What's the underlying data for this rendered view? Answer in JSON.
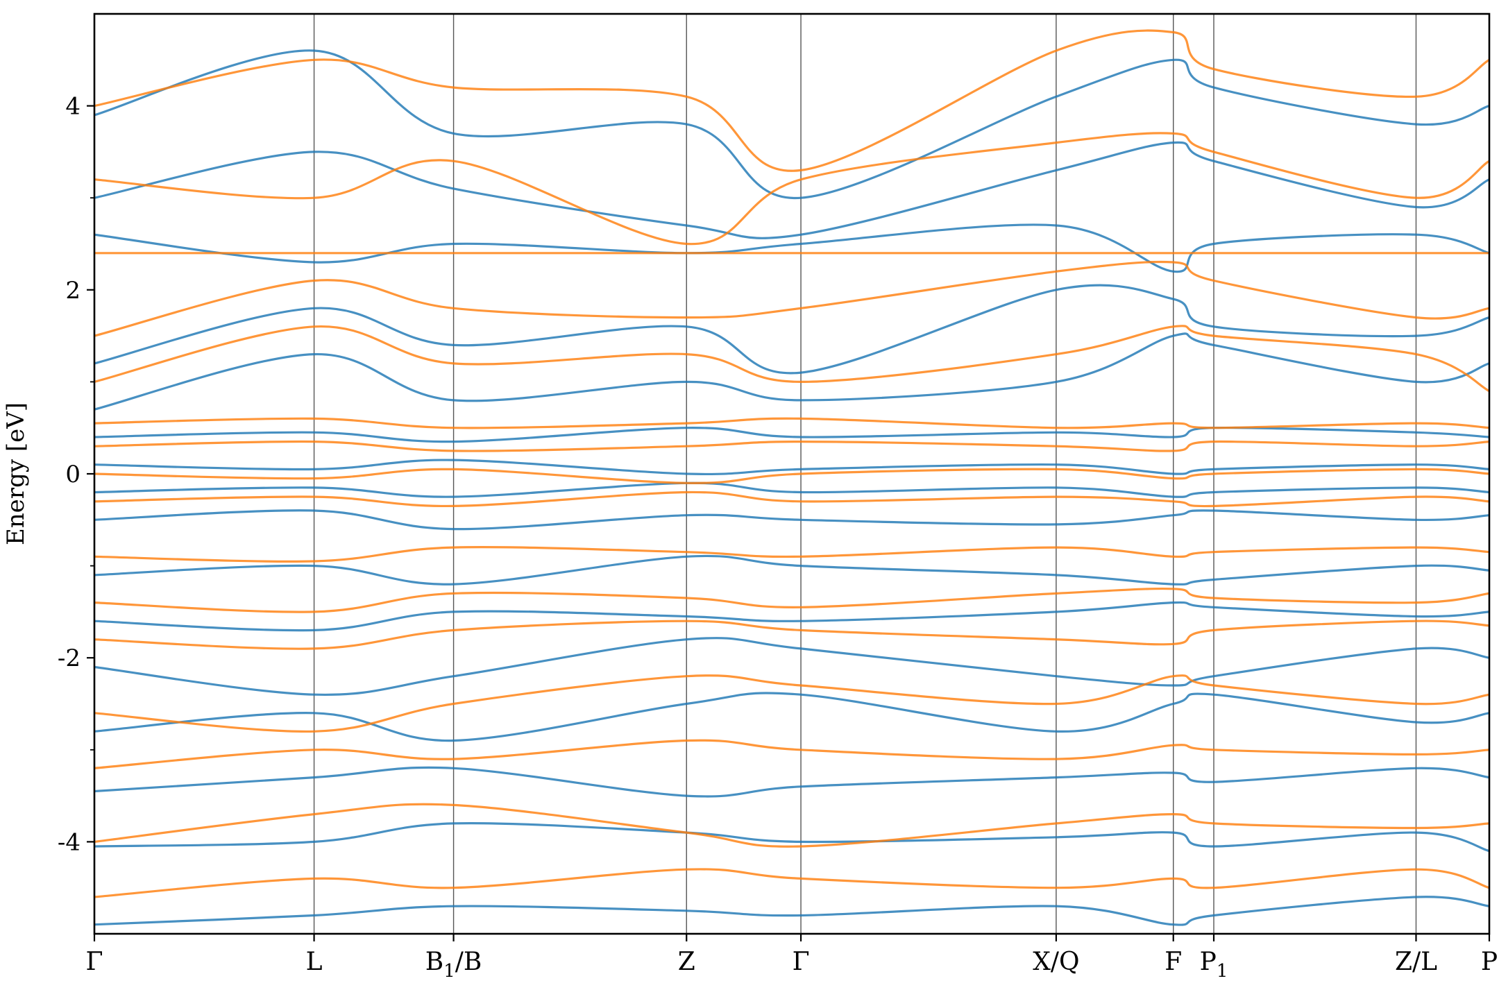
{
  "chart_data": {
    "type": "line",
    "title": "",
    "xlabel": "",
    "ylabel": "Energy [eV]",
    "ylim": [
      -5,
      5
    ],
    "yticks": [
      {
        "value": 4,
        "label": "4"
      },
      {
        "value": 2,
        "label": "2"
      },
      {
        "value": 0,
        "label": "0"
      },
      {
        "value": -2,
        "label": "-2"
      },
      {
        "value": -4,
        "label": "-4"
      }
    ],
    "yminor": [
      3,
      1,
      -1,
      -3
    ],
    "kpoints": [
      {
        "pos": 0.0,
        "label": "Γ"
      },
      {
        "pos": 1.575,
        "label": "L"
      },
      {
        "pos": 2.575,
        "label": "B1/B",
        "base": "B",
        "sub": "1",
        "tail": "/B"
      },
      {
        "pos": 4.245,
        "label": "Z"
      },
      {
        "pos": 5.065,
        "label": "Γ"
      },
      {
        "pos": 6.895,
        "label": "X/Q"
      },
      {
        "pos": 7.735,
        "label": "F"
      },
      {
        "pos": 8.025,
        "label": "P1",
        "base": "P",
        "sub": "1",
        "tail": ""
      },
      {
        "pos": 9.475,
        "label": "Z/L"
      },
      {
        "pos": 10.0,
        "label": "P"
      }
    ],
    "grid": false,
    "legend": "none",
    "colors": {
      "spin_up": "#1f77b4",
      "spin_down": "#ff7f0e"
    },
    "series": [
      {
        "color": "#1f77b4",
        "bands": [
          {
            "x": [
              0,
              1.575,
              2.575,
              4.245,
              5.065,
              6.895,
              7.735,
              8.025,
              9.475,
              10
            ],
            "y": [
              -4.9,
              -4.8,
              -4.7,
              -4.75,
              -4.8,
              -4.7,
              -4.9,
              -4.8,
              -4.6,
              -4.7
            ]
          },
          {
            "x": [
              0,
              1.575,
              2.575,
              4.245,
              5.065,
              6.895,
              7.735,
              8.025,
              9.475,
              10
            ],
            "y": [
              -4.05,
              -4.0,
              -3.8,
              -3.9,
              -4.0,
              -3.95,
              -3.9,
              -4.05,
              -3.9,
              -4.1
            ]
          },
          {
            "x": [
              0,
              1.575,
              2.575,
              4.245,
              5.065,
              6.895,
              7.735,
              8.025,
              9.475,
              10
            ],
            "y": [
              -3.45,
              -3.3,
              -3.2,
              -3.5,
              -3.4,
              -3.3,
              -3.25,
              -3.35,
              -3.2,
              -3.3
            ]
          },
          {
            "x": [
              0,
              1.575,
              2.575,
              4.245,
              5.065,
              6.895,
              7.735,
              8.025,
              9.475,
              10
            ],
            "y": [
              -2.8,
              -2.6,
              -2.9,
              -2.5,
              -2.4,
              -2.8,
              -2.5,
              -2.4,
              -2.7,
              -2.6
            ]
          },
          {
            "x": [
              0,
              1.575,
              2.575,
              4.245,
              5.065,
              6.895,
              7.735,
              8.025,
              9.475,
              10
            ],
            "y": [
              -2.1,
              -2.4,
              -2.2,
              -1.8,
              -1.9,
              -2.2,
              -2.3,
              -2.2,
              -1.9,
              -2.0
            ]
          },
          {
            "x": [
              0,
              1.575,
              2.575,
              4.245,
              5.065,
              6.895,
              7.735,
              8.025,
              9.475,
              10
            ],
            "y": [
              -1.6,
              -1.7,
              -1.5,
              -1.55,
              -1.6,
              -1.5,
              -1.4,
              -1.45,
              -1.55,
              -1.5
            ]
          },
          {
            "x": [
              0,
              1.575,
              2.575,
              4.245,
              5.065,
              6.895,
              7.735,
              8.025,
              9.475,
              10
            ],
            "y": [
              -1.1,
              -1.0,
              -1.2,
              -0.9,
              -1.0,
              -1.1,
              -1.2,
              -1.15,
              -1.0,
              -1.05
            ]
          },
          {
            "x": [
              0,
              1.575,
              2.575,
              4.245,
              5.065,
              6.895,
              7.735,
              8.025,
              9.475,
              10
            ],
            "y": [
              -0.5,
              -0.4,
              -0.6,
              -0.45,
              -0.5,
              -0.55,
              -0.45,
              -0.4,
              -0.5,
              -0.45
            ]
          },
          {
            "x": [
              0,
              1.575,
              2.575,
              4.245,
              5.065,
              6.895,
              7.735,
              8.025,
              9.475,
              10
            ],
            "y": [
              -0.2,
              -0.15,
              -0.25,
              -0.1,
              -0.2,
              -0.15,
              -0.25,
              -0.2,
              -0.15,
              -0.2
            ]
          },
          {
            "x": [
              0,
              1.575,
              2.575,
              4.245,
              5.065,
              6.895,
              7.735,
              8.025,
              9.475,
              10
            ],
            "y": [
              0.1,
              0.05,
              0.15,
              0.0,
              0.05,
              0.1,
              0.0,
              0.05,
              0.1,
              0.05
            ]
          },
          {
            "x": [
              0,
              1.575,
              2.575,
              4.245,
              5.065,
              6.895,
              7.735,
              8.025,
              9.475,
              10
            ],
            "y": [
              0.4,
              0.45,
              0.35,
              0.5,
              0.4,
              0.45,
              0.4,
              0.5,
              0.45,
              0.4
            ]
          },
          {
            "x": [
              0,
              1.575,
              2.575,
              4.245,
              5.065,
              6.895,
              7.735,
              8.025,
              9.475,
              10
            ],
            "y": [
              0.7,
              1.3,
              0.8,
              1.0,
              0.8,
              1.0,
              1.5,
              1.4,
              1.0,
              1.2
            ]
          },
          {
            "x": [
              0,
              1.575,
              2.575,
              4.245,
              5.065,
              6.895,
              7.735,
              8.025,
              9.475,
              10
            ],
            "y": [
              1.2,
              1.8,
              1.4,
              1.6,
              1.1,
              2.0,
              1.9,
              1.6,
              1.5,
              1.7
            ]
          },
          {
            "x": [
              0,
              1.575,
              2.575,
              4.245,
              5.065,
              6.895,
              7.735,
              8.025,
              9.475,
              10
            ],
            "y": [
              2.6,
              2.3,
              2.5,
              2.4,
              2.5,
              2.7,
              2.2,
              2.5,
              2.6,
              2.4
            ]
          },
          {
            "x": [
              0,
              1.575,
              2.575,
              4.245,
              5.065,
              6.895,
              7.735,
              8.025,
              9.475,
              10
            ],
            "y": [
              3.0,
              3.5,
              3.1,
              2.7,
              2.6,
              3.3,
              3.6,
              3.4,
              2.9,
              3.2
            ]
          },
          {
            "x": [
              0,
              1.575,
              2.575,
              4.245,
              5.065,
              6.895,
              7.735,
              8.025,
              9.475,
              10
            ],
            "y": [
              3.9,
              4.6,
              3.7,
              3.8,
              3.0,
              4.1,
              4.5,
              4.2,
              3.8,
              4.0
            ]
          }
        ]
      },
      {
        "color": "#ff7f0e",
        "bands": [
          {
            "x": [
              0,
              1.575,
              2.575,
              4.245,
              5.065,
              6.895,
              7.735,
              8.025,
              9.475,
              10
            ],
            "y": [
              -4.6,
              -4.4,
              -4.5,
              -4.3,
              -4.4,
              -4.5,
              -4.4,
              -4.5,
              -4.3,
              -4.5
            ]
          },
          {
            "x": [
              0,
              1.575,
              2.575,
              4.245,
              5.065,
              6.895,
              7.735,
              8.025,
              9.475,
              10
            ],
            "y": [
              -4.0,
              -3.7,
              -3.6,
              -3.9,
              -4.05,
              -3.8,
              -3.7,
              -3.8,
              -3.85,
              -3.8
            ]
          },
          {
            "x": [
              0,
              1.575,
              2.575,
              4.245,
              5.065,
              6.895,
              7.735,
              8.025,
              9.475,
              10
            ],
            "y": [
              -3.2,
              -3.0,
              -3.1,
              -2.9,
              -3.0,
              -3.1,
              -2.95,
              -3.0,
              -3.05,
              -3.0
            ]
          },
          {
            "x": [
              0,
              1.575,
              2.575,
              4.245,
              5.065,
              6.895,
              7.735,
              8.025,
              9.475,
              10
            ],
            "y": [
              -2.6,
              -2.8,
              -2.5,
              -2.2,
              -2.3,
              -2.5,
              -2.2,
              -2.3,
              -2.5,
              -2.4
            ]
          },
          {
            "x": [
              0,
              1.575,
              2.575,
              4.245,
              5.065,
              6.895,
              7.735,
              8.025,
              9.475,
              10
            ],
            "y": [
              -1.8,
              -1.9,
              -1.7,
              -1.6,
              -1.7,
              -1.8,
              -1.85,
              -1.7,
              -1.6,
              -1.65
            ]
          },
          {
            "x": [
              0,
              1.575,
              2.575,
              4.245,
              5.065,
              6.895,
              7.735,
              8.025,
              9.475,
              10
            ],
            "y": [
              -1.4,
              -1.5,
              -1.3,
              -1.35,
              -1.45,
              -1.3,
              -1.25,
              -1.35,
              -1.4,
              -1.3
            ]
          },
          {
            "x": [
              0,
              1.575,
              2.575,
              4.245,
              5.065,
              6.895,
              7.735,
              8.025,
              9.475,
              10
            ],
            "y": [
              -0.9,
              -0.95,
              -0.8,
              -0.85,
              -0.9,
              -0.8,
              -0.9,
              -0.85,
              -0.8,
              -0.85
            ]
          },
          {
            "x": [
              0,
              1.575,
              2.575,
              4.245,
              5.065,
              6.895,
              7.735,
              8.025,
              9.475,
              10
            ],
            "y": [
              -0.3,
              -0.25,
              -0.35,
              -0.2,
              -0.3,
              -0.25,
              -0.3,
              -0.35,
              -0.25,
              -0.3
            ]
          },
          {
            "x": [
              0,
              1.575,
              2.575,
              4.245,
              5.065,
              6.895,
              7.735,
              8.025,
              9.475,
              10
            ],
            "y": [
              0.0,
              -0.05,
              0.05,
              -0.1,
              0.0,
              0.05,
              -0.05,
              0.0,
              0.05,
              0.0
            ]
          },
          {
            "x": [
              0,
              1.575,
              2.575,
              4.245,
              5.065,
              6.895,
              7.735,
              8.025,
              9.475,
              10
            ],
            "y": [
              0.3,
              0.35,
              0.25,
              0.3,
              0.35,
              0.3,
              0.25,
              0.35,
              0.3,
              0.35
            ]
          },
          {
            "x": [
              0,
              1.575,
              2.575,
              4.245,
              5.065,
              6.895,
              7.735,
              8.025,
              9.475,
              10
            ],
            "y": [
              0.55,
              0.6,
              0.5,
              0.55,
              0.6,
              0.5,
              0.55,
              0.5,
              0.55,
              0.5
            ]
          },
          {
            "x": [
              0,
              1.575,
              2.575,
              4.245,
              5.065,
              6.895,
              7.735,
              8.025,
              9.475,
              10
            ],
            "y": [
              1.0,
              1.6,
              1.2,
              1.3,
              1.0,
              1.3,
              1.6,
              1.5,
              1.3,
              0.9
            ]
          },
          {
            "x": [
              0,
              1.575,
              2.575,
              4.245,
              5.065,
              6.895,
              7.735,
              8.025,
              9.475,
              10
            ],
            "y": [
              1.5,
              2.1,
              1.8,
              1.7,
              1.8,
              2.2,
              2.3,
              2.1,
              1.7,
              1.8
            ]
          },
          {
            "x": [
              0,
              1.575,
              2.575,
              4.245,
              5.065,
              6.895,
              7.735,
              8.025,
              9.475,
              10
            ],
            "y": [
              2.4,
              2.4,
              2.4,
              2.4,
              2.4,
              2.4,
              2.4,
              2.4,
              2.4,
              2.4
            ]
          },
          {
            "x": [
              0,
              1.575,
              2.575,
              4.245,
              5.065,
              6.895,
              7.735,
              8.025,
              9.475,
              10
            ],
            "y": [
              3.2,
              3.0,
              3.4,
              2.5,
              3.2,
              3.6,
              3.7,
              3.5,
              3.0,
              3.4
            ]
          },
          {
            "x": [
              0,
              1.575,
              2.575,
              4.245,
              5.065,
              6.895,
              7.735,
              8.025,
              9.475,
              10
            ],
            "y": [
              4.0,
              4.5,
              4.2,
              4.1,
              3.3,
              4.6,
              4.8,
              4.4,
              4.1,
              4.5
            ]
          }
        ]
      }
    ]
  }
}
